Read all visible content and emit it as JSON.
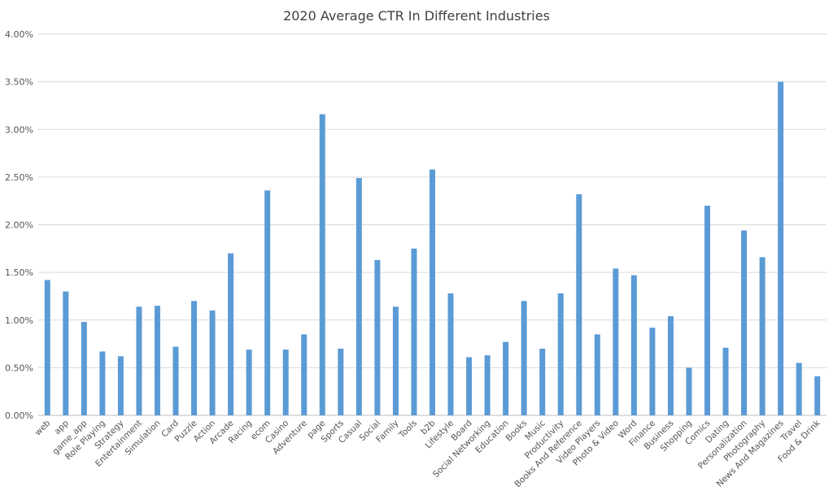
{
  "chart_data": {
    "type": "bar",
    "title": "2020 Average CTR In Different Industries",
    "xlabel": "",
    "ylabel": "",
    "ylim": [
      0,
      0.04
    ],
    "yticks": [
      "0.00%",
      "0.50%",
      "1.00%",
      "1.50%",
      "2.00%",
      "2.50%",
      "3.00%",
      "3.50%",
      "4.00%"
    ],
    "grid": true,
    "legend": "none",
    "bar_color": "#5b9bd5",
    "categories": [
      "web",
      "app",
      "game_app",
      "Role Playing",
      "Strategy",
      "Entertainment",
      "Simulation",
      "Card",
      "Puzzle",
      "Action",
      "Arcade",
      "Racing",
      "ecom",
      "Casino",
      "Adventure",
      "page",
      "Sports",
      "Casual",
      "Social",
      "Family",
      "Tools",
      "b2b",
      "Lifestyle",
      "Board",
      "Social Networking",
      "Education",
      "Books",
      "Music",
      "Productivity",
      "Books And Reference",
      "Video Players",
      "Photo & Video",
      "Word",
      "Finance",
      "Business",
      "Shopping",
      "Comics",
      "Dating",
      "Personalization",
      "Photography",
      "News And Magazines",
      "Travel",
      "Food & Drink"
    ],
    "values": [
      0.0142,
      0.013,
      0.0098,
      0.0067,
      0.0062,
      0.0114,
      0.0115,
      0.0072,
      0.012,
      0.011,
      0.017,
      0.0069,
      0.0236,
      0.0069,
      0.0085,
      0.0316,
      0.007,
      0.0249,
      0.0163,
      0.0114,
      0.0175,
      0.0258,
      0.0128,
      0.0061,
      0.0063,
      0.0077,
      0.012,
      0.007,
      0.0128,
      0.0232,
      0.0085,
      0.0154,
      0.0147,
      0.0092,
      0.0104,
      0.005,
      0.022,
      0.0071,
      0.0194,
      0.0166,
      0.035,
      0.0055,
      0.0041
    ]
  }
}
